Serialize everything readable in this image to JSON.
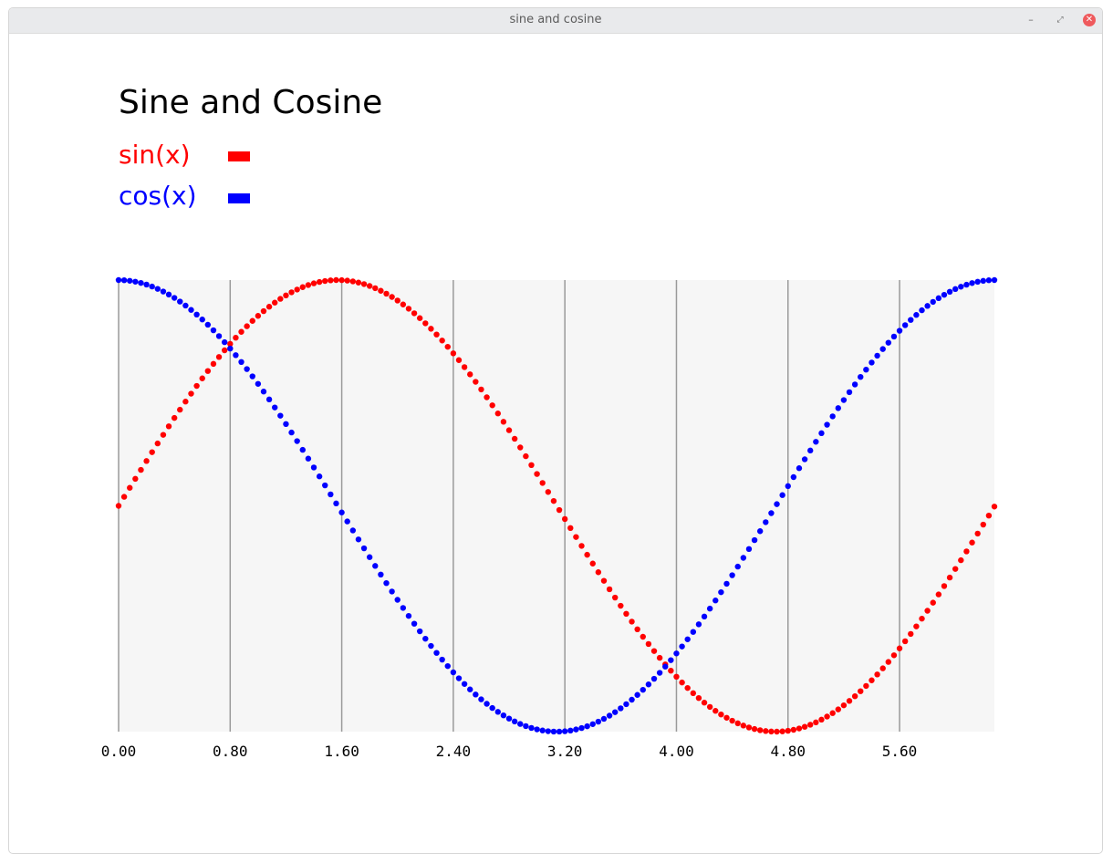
{
  "window": {
    "title": "sine and cosine"
  },
  "controls": {
    "minimize": "–",
    "maximize": "⤢",
    "close": "✕"
  },
  "chart_data": {
    "type": "scatter",
    "title": "Sine and Cosine",
    "xlabel": "",
    "ylabel": "",
    "xlim": [
      0,
      6.28
    ],
    "ylim": [
      -1,
      1
    ],
    "x_ticks": [
      "0.00",
      "0.80",
      "1.60",
      "2.40",
      "3.20",
      "4.00",
      "4.80",
      "5.60"
    ],
    "grid": "vertical",
    "legend_position": "top-left",
    "x_step": 0.04,
    "series": [
      {
        "name": "sin(x)",
        "color": "#ff0000",
        "function": "sin"
      },
      {
        "name": "cos(x)",
        "color": "#0000ff",
        "function": "cos"
      }
    ]
  }
}
